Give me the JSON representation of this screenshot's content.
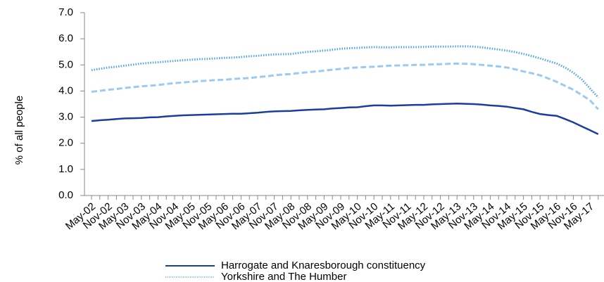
{
  "chart_data": {
    "type": "line",
    "y_label": "% of all people",
    "categories": [
      "May-02",
      null,
      "Nov-02",
      null,
      "May-03",
      null,
      "Nov-03",
      null,
      "May-04",
      null,
      "Nov-04",
      null,
      "May-05",
      null,
      "Nov-05",
      null,
      "May-06",
      null,
      "Nov-06",
      null,
      "May-07",
      null,
      "Nov-07",
      null,
      "May-08",
      null,
      "Nov-08",
      null,
      "May-09",
      null,
      "Nov-09",
      null,
      "May-10",
      null,
      "Nov-10",
      null,
      "May-11",
      null,
      "Nov-11",
      null,
      "May-12",
      null,
      "Nov-12",
      null,
      "May-13",
      null,
      "Nov-13",
      null,
      "May-14",
      null,
      "Nov-14",
      null,
      "May-15",
      null,
      "Nov-15",
      null,
      "May-16",
      null,
      "Nov-16",
      null,
      "May-17",
      null
    ],
    "series": [
      {
        "name": "Harrogate and Knaresborough constituency",
        "color": "#1a3ea0",
        "dash": "solid",
        "values": [
          2.85,
          2.88,
          2.9,
          2.93,
          2.95,
          2.96,
          2.97,
          2.99,
          3.0,
          3.03,
          3.05,
          3.07,
          3.08,
          3.09,
          3.1,
          3.11,
          3.12,
          3.13,
          3.13,
          3.15,
          3.17,
          3.2,
          3.22,
          3.23,
          3.24,
          3.26,
          3.28,
          3.29,
          3.3,
          3.33,
          3.35,
          3.37,
          3.38,
          3.42,
          3.45,
          3.45,
          3.44,
          3.45,
          3.46,
          3.47,
          3.47,
          3.49,
          3.5,
          3.51,
          3.52,
          3.51,
          3.5,
          3.48,
          3.45,
          3.43,
          3.4,
          3.35,
          3.3,
          3.2,
          3.12,
          3.08,
          3.05,
          2.93,
          2.8,
          2.65,
          2.5,
          2.35
        ]
      },
      {
        "name": "Yorkshire and The Humber",
        "color": "#4fa6e6",
        "dash": "dotted",
        "values": [
          4.8,
          4.85,
          4.9,
          4.93,
          4.97,
          5.01,
          5.05,
          5.08,
          5.1,
          5.13,
          5.15,
          5.18,
          5.2,
          5.22,
          5.23,
          5.25,
          5.27,
          5.28,
          5.3,
          5.33,
          5.35,
          5.38,
          5.4,
          5.41,
          5.42,
          5.46,
          5.5,
          5.52,
          5.55,
          5.58,
          5.62,
          5.64,
          5.65,
          5.67,
          5.68,
          5.67,
          5.67,
          5.68,
          5.68,
          5.68,
          5.69,
          5.7,
          5.7,
          5.7,
          5.71,
          5.71,
          5.7,
          5.67,
          5.63,
          5.59,
          5.55,
          5.49,
          5.42,
          5.34,
          5.25,
          5.15,
          5.05,
          4.9,
          4.7,
          4.45,
          4.1,
          3.75
        ]
      },
      {
        "color": "#9ccaf1",
        "dash": "dashed",
        "values": [
          3.97,
          4.01,
          4.05,
          4.08,
          4.12,
          4.15,
          4.18,
          4.2,
          4.23,
          4.27,
          4.3,
          4.33,
          4.35,
          4.38,
          4.4,
          4.42,
          4.43,
          4.46,
          4.48,
          4.5,
          4.53,
          4.56,
          4.6,
          4.63,
          4.65,
          4.69,
          4.72,
          4.75,
          4.78,
          4.82,
          4.85,
          4.88,
          4.9,
          4.92,
          4.93,
          4.95,
          4.97,
          4.98,
          4.99,
          5.0,
          5.0,
          5.02,
          5.03,
          5.04,
          5.05,
          5.04,
          5.03,
          5.0,
          4.97,
          4.94,
          4.9,
          4.83,
          4.75,
          4.68,
          4.6,
          4.48,
          4.35,
          4.2,
          4.05,
          3.85,
          3.65,
          3.3
        ]
      }
    ],
    "ylim": [
      0,
      7
    ],
    "yticks": [
      {
        "value": 0,
        "label": "0.0"
      },
      {
        "value": 1,
        "label": "1.0"
      },
      {
        "value": 2,
        "label": "2.0"
      },
      {
        "value": 3,
        "label": "3.0"
      },
      {
        "value": 4,
        "label": "4.0"
      },
      {
        "value": 5,
        "label": "5.0"
      },
      {
        "value": 6,
        "label": "6.0"
      },
      {
        "value": 7,
        "label": "7.0"
      }
    ],
    "grid": false
  }
}
